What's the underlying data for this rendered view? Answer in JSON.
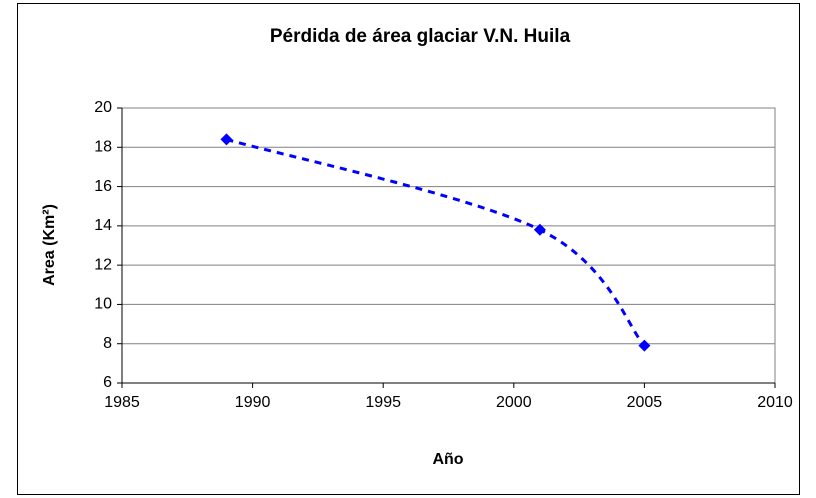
{
  "chart_data": {
    "type": "scatter",
    "title": "Pérdida de área glaciar V.N. Huila",
    "x_label": "Año",
    "y_label": "Area (Km²)",
    "series": [
      {
        "name": "Area",
        "color": "#0000ff",
        "x": [
          1989,
          2001,
          2005
        ],
        "values": [
          18.4,
          13.8,
          7.9
        ]
      }
    ],
    "xlim": [
      1985,
      2010
    ],
    "xticks": [
      1985,
      1990,
      1995,
      2000,
      2005,
      2010
    ],
    "ylim": [
      6,
      20
    ],
    "yticks": [
      6,
      8,
      10,
      12,
      14,
      16,
      18,
      20
    ],
    "grid": true,
    "smooth_line": true,
    "line_dash": true
  }
}
